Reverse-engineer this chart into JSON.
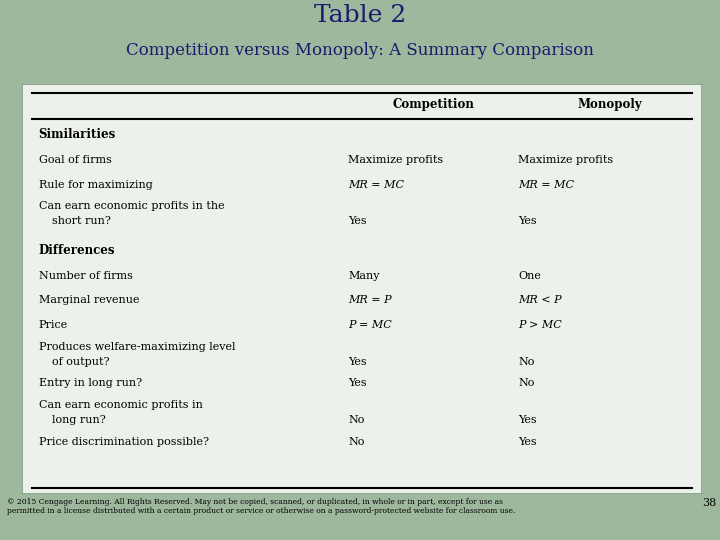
{
  "title_line1": "Table 2",
  "title_line2": "Competition versus Monopoly: A Summary Comparison",
  "table_bg": "#edf1eb",
  "outer_bg": "#9db89d",
  "col_header": [
    "Competition",
    "Monopoly"
  ],
  "sections": [
    {
      "section_title": "Similarities",
      "rows": [
        {
          "label": [
            "Goal of firms"
          ],
          "competition": "Maximize profits",
          "monopoly": "Maximize profits",
          "comp_italic": false,
          "mono_italic": false
        },
        {
          "label": [
            "Rule for maximizing"
          ],
          "competition": "MR = MC",
          "monopoly": "MR = MC",
          "comp_italic": true,
          "mono_italic": true
        },
        {
          "label": [
            "Can earn economic profits in the",
            "   short run?"
          ],
          "competition": "Yes",
          "monopoly": "Yes",
          "comp_italic": false,
          "mono_italic": false,
          "two_line": true
        }
      ]
    },
    {
      "section_title": "Differences",
      "rows": [
        {
          "label": [
            "Number of firms"
          ],
          "competition": "Many",
          "monopoly": "One",
          "comp_italic": false,
          "mono_italic": false
        },
        {
          "label": [
            "Marginal revenue"
          ],
          "competition": "MR = P",
          "monopoly": "MR < P",
          "comp_italic": true,
          "mono_italic": true
        },
        {
          "label": [
            "Price"
          ],
          "competition": "P = MC",
          "monopoly": "P > MC",
          "comp_italic": true,
          "mono_italic": true
        },
        {
          "label": [
            "Produces welfare-maximizing level",
            "   of output?"
          ],
          "competition": "Yes",
          "monopoly": "No",
          "comp_italic": false,
          "mono_italic": false,
          "two_line": true
        },
        {
          "label": [
            "Entry in long run?"
          ],
          "competition": "Yes",
          "monopoly": "No",
          "comp_italic": false,
          "mono_italic": false
        },
        {
          "label": [
            "Can earn economic profits in",
            "   long run?"
          ],
          "competition": "No",
          "monopoly": "Yes",
          "comp_italic": false,
          "mono_italic": false,
          "two_line": true
        },
        {
          "label": [
            "Price discrimination possible?"
          ],
          "competition": "No",
          "monopoly": "Yes",
          "comp_italic": false,
          "mono_italic": false
        }
      ]
    }
  ],
  "footer": "© 2015 Cengage Learning. All Rights Reserved. May not be copied, scanned, or duplicated, in whole or in part, except for use as\npermitted in a license distributed with a certain product or service or otherwise on a password-protected website for classroom use.",
  "page_num": "38",
  "title_color": "#1a1a6e",
  "subtitle_color": "#1a1a6e"
}
